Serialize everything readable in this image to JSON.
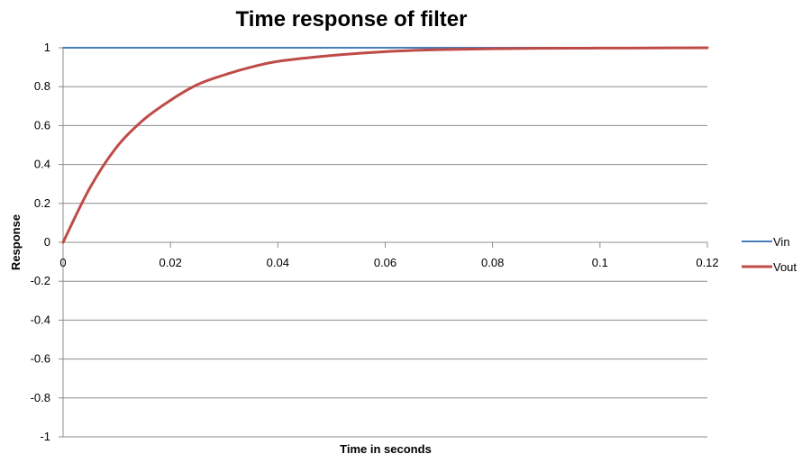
{
  "chart_data": {
    "type": "line",
    "title": "Time response of filter",
    "xlabel": "Time in seconds",
    "ylabel": "Response",
    "xlim": [
      0,
      0.12
    ],
    "ylim": [
      -1,
      1
    ],
    "x_ticks": [
      "0",
      "0.02",
      "0.04",
      "0.06",
      "0.08",
      "0.1",
      "0.12"
    ],
    "y_ticks": [
      "1",
      "0.8",
      "0.6",
      "0.4",
      "0.2",
      "0",
      "-0.2",
      "-0.4",
      "-0.6",
      "-0.8",
      "-1"
    ],
    "grid": "horizontal",
    "legend_position": "right",
    "series": [
      {
        "name": "Vin",
        "color": "#4a7ebb",
        "x": [
          0,
          0.12
        ],
        "y": [
          1,
          1
        ]
      },
      {
        "name": "Vout",
        "color": "#be4b48",
        "x": [
          0,
          0.005,
          0.01,
          0.015,
          0.02,
          0.025,
          0.03,
          0.035,
          0.04,
          0.05,
          0.06,
          0.07,
          0.08,
          0.09,
          0.1,
          0.11,
          0.12
        ],
        "y": [
          0,
          0.28,
          0.49,
          0.63,
          0.73,
          0.81,
          0.86,
          0.9,
          0.93,
          0.96,
          0.98,
          0.99,
          0.995,
          0.997,
          0.998,
          0.999,
          1.0
        ]
      }
    ]
  }
}
